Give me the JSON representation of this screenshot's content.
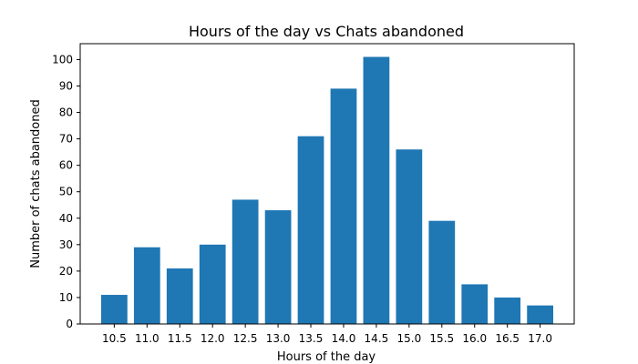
{
  "chart_data": {
    "type": "bar",
    "title": "Hours of the day vs Chats abandoned",
    "xlabel": "Hours of the day",
    "ylabel": "Number of chats abandoned",
    "categories": [
      "10.5",
      "11.0",
      "11.5",
      "12.0",
      "12.5",
      "13.0",
      "13.5",
      "14.0",
      "14.5",
      "15.0",
      "15.5",
      "16.0",
      "16.5",
      "17.0"
    ],
    "values": [
      11,
      29,
      21,
      30,
      47,
      43,
      71,
      89,
      101,
      66,
      39,
      15,
      10,
      7
    ],
    "ylim": [
      0,
      106
    ],
    "yticks": [
      "0",
      "10",
      "20",
      "30",
      "40",
      "50",
      "60",
      "70",
      "80",
      "90",
      "100"
    ],
    "bar_color": "#1f77b4",
    "grid": false,
    "legend": "none"
  }
}
